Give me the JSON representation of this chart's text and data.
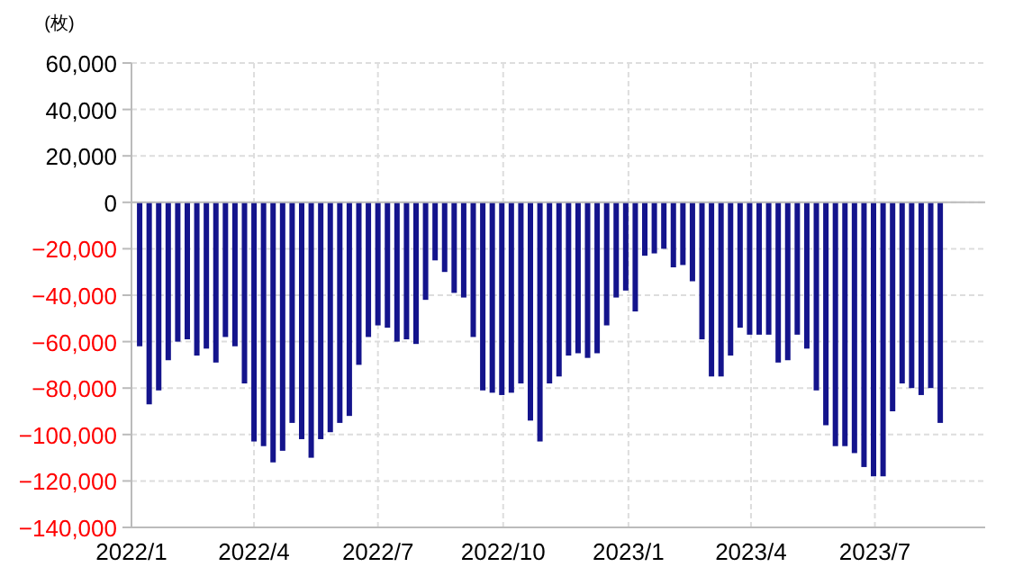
{
  "chart_data": {
    "type": "bar",
    "ylabel": "(枚)",
    "x": [
      "2022-01-07",
      "2022-01-14",
      "2022-01-21",
      "2022-01-28",
      "2022-02-04",
      "2022-02-11",
      "2022-02-18",
      "2022-02-25",
      "2022-03-04",
      "2022-03-11",
      "2022-03-18",
      "2022-03-25",
      "2022-04-01",
      "2022-04-08",
      "2022-04-15",
      "2022-04-22",
      "2022-04-29",
      "2022-05-06",
      "2022-05-13",
      "2022-05-20",
      "2022-05-27",
      "2022-06-03",
      "2022-06-10",
      "2022-06-17",
      "2022-06-24",
      "2022-07-01",
      "2022-07-08",
      "2022-07-15",
      "2022-07-22",
      "2022-07-29",
      "2022-08-05",
      "2022-08-12",
      "2022-08-19",
      "2022-08-26",
      "2022-09-02",
      "2022-09-09",
      "2022-09-16",
      "2022-09-23",
      "2022-09-30",
      "2022-10-07",
      "2022-10-14",
      "2022-10-21",
      "2022-10-28",
      "2022-11-04",
      "2022-11-11",
      "2022-11-18",
      "2022-11-25",
      "2022-12-02",
      "2022-12-09",
      "2022-12-16",
      "2022-12-23",
      "2022-12-30",
      "2023-01-06",
      "2023-01-13",
      "2023-01-20",
      "2023-01-27",
      "2023-02-03",
      "2023-02-10",
      "2023-02-17",
      "2023-02-24",
      "2023-03-03",
      "2023-03-10",
      "2023-03-17",
      "2023-03-24",
      "2023-03-31",
      "2023-04-07",
      "2023-04-14",
      "2023-04-21",
      "2023-04-28",
      "2023-05-05",
      "2023-05-12",
      "2023-05-19",
      "2023-05-26",
      "2023-06-02",
      "2023-06-09",
      "2023-06-16",
      "2023-06-23",
      "2023-06-30",
      "2023-07-07",
      "2023-07-14",
      "2023-07-21",
      "2023-07-28",
      "2023-08-04",
      "2023-08-11",
      "2023-08-18"
    ],
    "series": [
      {
        "color": "#14148c",
        "values": [
          -62000,
          -87000,
          -81000,
          -68000,
          -60000,
          -59000,
          -66000,
          -63000,
          -69000,
          -58000,
          -62000,
          -78000,
          -103000,
          -105000,
          -112000,
          -107000,
          -95000,
          -102000,
          -110000,
          -102000,
          -99000,
          -95000,
          -92000,
          -70000,
          -58000,
          -53000,
          -54000,
          -60000,
          -59000,
          -61000,
          -42000,
          -25000,
          -30000,
          -39000,
          -41000,
          -58000,
          -81000,
          -82000,
          -83000,
          -82000,
          -78000,
          -94000,
          -103000,
          -78000,
          -75000,
          -66000,
          -65000,
          -67000,
          -65000,
          -53000,
          -41000,
          -38000,
          -47000,
          -23000,
          -22000,
          -20000,
          -28000,
          -27000,
          -34000,
          -59000,
          -75000,
          -75000,
          -66000,
          -54000,
          -57000,
          -57000,
          -57000,
          -69000,
          -68000,
          -57000,
          -63000,
          -81000,
          -96000,
          -105000,
          -105000,
          -108000,
          -114000,
          -118000,
          -118000,
          -90000,
          -78000,
          -80000,
          -83000,
          -80000,
          -95000
        ]
      }
    ],
    "xlim": [
      "2022-01-01",
      "2023-09-20"
    ],
    "xticks": [
      {
        "value": "2022-01-01",
        "label": "2022/1"
      },
      {
        "value": "2022-04-01",
        "label": "2022/4"
      },
      {
        "value": "2022-07-01",
        "label": "2022/7"
      },
      {
        "value": "2022-10-01",
        "label": "2022/10"
      },
      {
        "value": "2023-01-01",
        "label": "2023/1"
      },
      {
        "value": "2023-04-01",
        "label": "2023/4"
      },
      {
        "value": "2023-07-01",
        "label": "2023/7"
      }
    ],
    "ylim": [
      -140000,
      60000
    ],
    "yticks": [
      {
        "value": 60000,
        "label": "60,000"
      },
      {
        "value": 40000,
        "label": "40,000"
      },
      {
        "value": 20000,
        "label": "20,000"
      },
      {
        "value": 0,
        "label": "0"
      },
      {
        "value": -20000,
        "label": "−20,000"
      },
      {
        "value": -40000,
        "label": "−40,000"
      },
      {
        "value": -60000,
        "label": "−60,000"
      },
      {
        "value": -80000,
        "label": "−80,000"
      },
      {
        "value": -100000,
        "label": "−100,000"
      },
      {
        "value": -120000,
        "label": "−120,000"
      },
      {
        "value": -140000,
        "label": "−140,000"
      }
    ],
    "grid": true
  }
}
